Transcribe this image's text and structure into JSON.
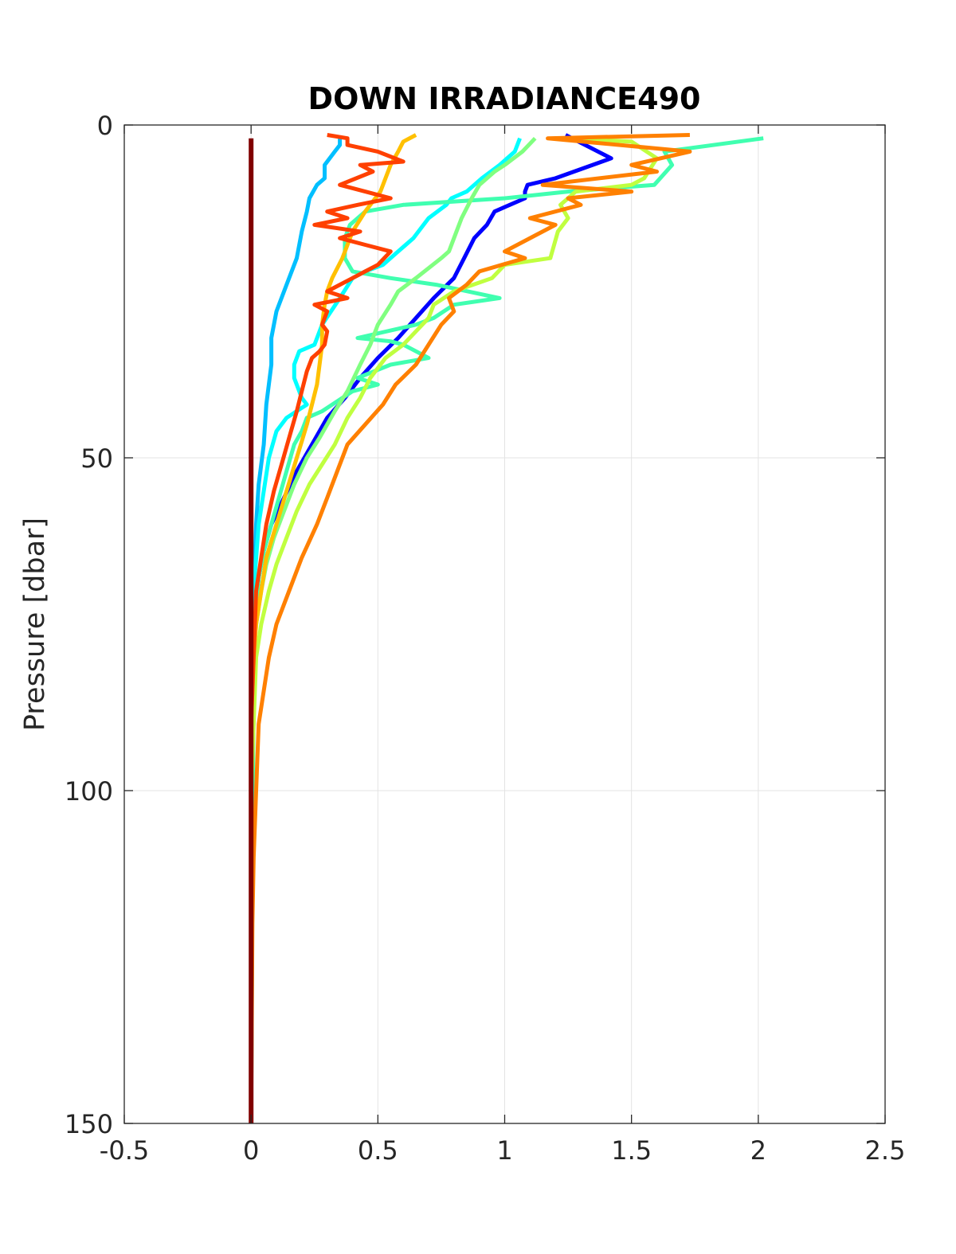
{
  "chart_data": {
    "type": "line",
    "title": "DOWN IRRADIANCE490",
    "xlabel": "",
    "ylabel": "Pressure [dbar]",
    "xlim": [
      -0.5,
      2.5
    ],
    "ylim": [
      0,
      150
    ],
    "y_reversed": true,
    "grid": true,
    "legend": "none",
    "x_ticks": [
      "-0.5",
      "0",
      "0.5",
      "1",
      "1.5",
      "2",
      "2.5"
    ],
    "y_ticks": [
      "0",
      "50",
      "100",
      "150"
    ],
    "series": [
      {
        "color": "#0000ff",
        "points": [
          [
            1.24,
            1.5
          ],
          [
            1.42,
            5
          ],
          [
            1.2,
            8
          ],
          [
            1.09,
            9
          ],
          [
            1.08,
            10
          ],
          [
            1.08,
            11
          ],
          [
            1.02,
            12
          ],
          [
            0.96,
            13
          ],
          [
            0.93,
            15
          ],
          [
            0.88,
            17
          ],
          [
            0.84,
            20
          ],
          [
            0.8,
            23
          ],
          [
            0.72,
            26
          ],
          [
            0.65,
            29
          ],
          [
            0.58,
            32
          ],
          [
            0.5,
            35
          ],
          [
            0.43,
            38
          ],
          [
            0.37,
            41
          ],
          [
            0.3,
            44
          ],
          [
            0.24,
            48
          ],
          [
            0.18,
            52
          ],
          [
            0.13,
            56
          ],
          [
            0.08,
            60
          ],
          [
            0.05,
            64
          ],
          [
            0.03,
            68
          ],
          [
            0.02,
            72
          ],
          [
            0.01,
            80
          ],
          [
            0.005,
            100
          ],
          [
            0,
            150
          ]
        ]
      },
      {
        "color": "#00bfff",
        "points": [
          [
            0.35,
            2
          ],
          [
            0.35,
            3
          ],
          [
            0.33,
            4
          ],
          [
            0.29,
            6
          ],
          [
            0.29,
            8
          ],
          [
            0.26,
            9
          ],
          [
            0.23,
            11
          ],
          [
            0.22,
            13
          ],
          [
            0.2,
            16
          ],
          [
            0.18,
            20
          ],
          [
            0.14,
            24
          ],
          [
            0.1,
            28
          ],
          [
            0.08,
            32
          ],
          [
            0.08,
            36
          ],
          [
            0.06,
            42
          ],
          [
            0.05,
            48
          ],
          [
            0.03,
            54
          ],
          [
            0.02,
            60
          ],
          [
            0.01,
            70
          ],
          [
            0,
            80
          ],
          [
            0,
            150
          ]
        ]
      },
      {
        "color": "#00ffff",
        "points": [
          [
            1.06,
            2
          ],
          [
            1.04,
            4
          ],
          [
            0.98,
            6
          ],
          [
            0.91,
            8
          ],
          [
            0.85,
            10
          ],
          [
            0.79,
            11
          ],
          [
            0.77,
            12
          ],
          [
            0.7,
            14
          ],
          [
            0.64,
            17
          ],
          [
            0.58,
            19
          ],
          [
            0.52,
            21
          ],
          [
            0.45,
            22
          ],
          [
            0.4,
            23
          ],
          [
            0.35,
            26
          ],
          [
            0.28,
            30
          ],
          [
            0.25,
            33
          ],
          [
            0.19,
            34
          ],
          [
            0.17,
            36
          ],
          [
            0.17,
            38
          ],
          [
            0.2,
            41
          ],
          [
            0.22,
            42
          ],
          [
            0.14,
            44
          ],
          [
            0.1,
            46
          ],
          [
            0.07,
            50
          ],
          [
            0.05,
            55
          ],
          [
            0.03,
            60
          ],
          [
            0.01,
            70
          ],
          [
            0,
            80
          ],
          [
            0,
            150
          ]
        ]
      },
      {
        "color": "#40ffb0",
        "points": [
          [
            2.02,
            2
          ],
          [
            1.63,
            4
          ],
          [
            1.66,
            6
          ],
          [
            1.59,
            9
          ],
          [
            1.25,
            10
          ],
          [
            1.0,
            11
          ],
          [
            0.6,
            12
          ],
          [
            0.45,
            13
          ],
          [
            0.39,
            15
          ],
          [
            0.37,
            17
          ],
          [
            0.37,
            20
          ],
          [
            0.4,
            22
          ],
          [
            0.55,
            23
          ],
          [
            0.73,
            24
          ],
          [
            0.98,
            26
          ],
          [
            0.8,
            27
          ],
          [
            0.72,
            29
          ],
          [
            0.65,
            30
          ],
          [
            0.42,
            32
          ],
          [
            0.55,
            32.5
          ],
          [
            0.6,
            33
          ],
          [
            0.65,
            34
          ],
          [
            0.7,
            35
          ],
          [
            0.55,
            36
          ],
          [
            0.42,
            38
          ],
          [
            0.5,
            39
          ],
          [
            0.4,
            40
          ],
          [
            0.28,
            43
          ],
          [
            0.22,
            44
          ],
          [
            0.2,
            46
          ],
          [
            0.17,
            48
          ],
          [
            0.14,
            52
          ],
          [
            0.11,
            56
          ],
          [
            0.08,
            60
          ],
          [
            0.05,
            64
          ],
          [
            0.03,
            68
          ],
          [
            0.02,
            72
          ],
          [
            0.01,
            80
          ],
          [
            0,
            150
          ]
        ]
      },
      {
        "color": "#80ff80",
        "points": [
          [
            1.12,
            2
          ],
          [
            1.07,
            4
          ],
          [
            1.0,
            6
          ],
          [
            0.96,
            7
          ],
          [
            0.9,
            9
          ],
          [
            0.87,
            11
          ],
          [
            0.83,
            14
          ],
          [
            0.81,
            16
          ],
          [
            0.78,
            19
          ],
          [
            0.75,
            20
          ],
          [
            0.65,
            23
          ],
          [
            0.58,
            25
          ],
          [
            0.55,
            27
          ],
          [
            0.5,
            30
          ],
          [
            0.47,
            33
          ],
          [
            0.43,
            36
          ],
          [
            0.38,
            40
          ],
          [
            0.33,
            43
          ],
          [
            0.27,
            47
          ],
          [
            0.22,
            50
          ],
          [
            0.17,
            54
          ],
          [
            0.13,
            58
          ],
          [
            0.09,
            62
          ],
          [
            0.06,
            66
          ],
          [
            0.04,
            70
          ],
          [
            0.02,
            75
          ],
          [
            0.01,
            80
          ],
          [
            0,
            90
          ],
          [
            0,
            150
          ]
        ]
      },
      {
        "color": "#c0ff40",
        "points": [
          [
            1.23,
            2
          ],
          [
            1.5,
            2.5
          ],
          [
            1.6,
            5
          ],
          [
            1.55,
            8
          ],
          [
            1.5,
            9
          ],
          [
            1.28,
            10
          ],
          [
            1.22,
            12
          ],
          [
            1.25,
            14
          ],
          [
            1.21,
            16
          ],
          [
            1.18,
            20
          ],
          [
            1.0,
            21
          ],
          [
            0.95,
            23
          ],
          [
            0.8,
            25
          ],
          [
            0.72,
            27
          ],
          [
            0.7,
            29
          ],
          [
            0.65,
            31
          ],
          [
            0.6,
            33
          ],
          [
            0.53,
            35
          ],
          [
            0.47,
            38
          ],
          [
            0.43,
            41
          ],
          [
            0.38,
            44
          ],
          [
            0.33,
            48
          ],
          [
            0.28,
            51
          ],
          [
            0.23,
            54
          ],
          [
            0.18,
            58
          ],
          [
            0.14,
            62
          ],
          [
            0.1,
            66
          ],
          [
            0.07,
            70
          ],
          [
            0.04,
            75
          ],
          [
            0.02,
            80
          ],
          [
            0.01,
            90
          ],
          [
            0,
            100
          ],
          [
            0,
            150
          ]
        ]
      },
      {
        "color": "#ffc000",
        "points": [
          [
            0.65,
            1.5
          ],
          [
            0.6,
            2.5
          ],
          [
            0.58,
            4
          ],
          [
            0.55,
            6
          ],
          [
            0.53,
            8
          ],
          [
            0.51,
            10
          ],
          [
            0.45,
            13
          ],
          [
            0.4,
            16
          ],
          [
            0.36,
            20
          ],
          [
            0.32,
            23
          ],
          [
            0.3,
            25
          ],
          [
            0.29,
            27
          ],
          [
            0.28,
            30
          ],
          [
            0.28,
            33
          ],
          [
            0.27,
            36
          ],
          [
            0.26,
            39
          ],
          [
            0.24,
            42
          ],
          [
            0.22,
            45
          ],
          [
            0.18,
            50
          ],
          [
            0.14,
            55
          ],
          [
            0.1,
            60
          ],
          [
            0.06,
            65
          ],
          [
            0.04,
            70
          ],
          [
            0.02,
            75
          ],
          [
            0.01,
            80
          ],
          [
            0,
            90
          ],
          [
            0,
            150
          ]
        ]
      },
      {
        "color": "#ff8000",
        "points": [
          [
            1.73,
            1.5
          ],
          [
            1.17,
            2
          ],
          [
            1.73,
            4
          ],
          [
            1.5,
            6
          ],
          [
            1.6,
            7
          ],
          [
            1.15,
            9
          ],
          [
            1.5,
            10
          ],
          [
            1.25,
            11
          ],
          [
            1.3,
            12
          ],
          [
            1.1,
            14
          ],
          [
            1.2,
            15
          ],
          [
            1.1,
            17
          ],
          [
            1.0,
            19
          ],
          [
            1.08,
            20
          ],
          [
            0.9,
            22
          ],
          [
            0.85,
            24
          ],
          [
            0.78,
            26
          ],
          [
            0.8,
            28
          ],
          [
            0.75,
            30
          ],
          [
            0.7,
            33
          ],
          [
            0.65,
            36
          ],
          [
            0.57,
            39
          ],
          [
            0.52,
            42
          ],
          [
            0.45,
            45
          ],
          [
            0.38,
            48
          ],
          [
            0.34,
            52
          ],
          [
            0.3,
            56
          ],
          [
            0.26,
            60
          ],
          [
            0.2,
            65
          ],
          [
            0.15,
            70
          ],
          [
            0.1,
            75
          ],
          [
            0.07,
            80
          ],
          [
            0.05,
            85
          ],
          [
            0.03,
            90
          ],
          [
            0.02,
            100
          ],
          [
            0.01,
            110
          ],
          [
            0.005,
            120
          ],
          [
            0,
            150
          ]
        ]
      },
      {
        "color": "#ff4000",
        "points": [
          [
            0.3,
            1.5
          ],
          [
            0.38,
            2
          ],
          [
            0.38,
            3
          ],
          [
            0.5,
            4
          ],
          [
            0.6,
            5.5
          ],
          [
            0.43,
            6
          ],
          [
            0.48,
            7
          ],
          [
            0.35,
            9
          ],
          [
            0.45,
            10
          ],
          [
            0.55,
            11
          ],
          [
            0.42,
            12
          ],
          [
            0.3,
            13
          ],
          [
            0.38,
            14
          ],
          [
            0.25,
            15
          ],
          [
            0.43,
            16
          ],
          [
            0.35,
            17
          ],
          [
            0.45,
            18
          ],
          [
            0.55,
            19
          ],
          [
            0.5,
            21
          ],
          [
            0.45,
            22
          ],
          [
            0.4,
            23
          ],
          [
            0.35,
            24
          ],
          [
            0.3,
            25
          ],
          [
            0.38,
            26
          ],
          [
            0.25,
            27
          ],
          [
            0.3,
            28
          ],
          [
            0.28,
            30
          ],
          [
            0.3,
            31
          ],
          [
            0.29,
            33
          ],
          [
            0.27,
            34
          ],
          [
            0.24,
            35
          ],
          [
            0.22,
            37
          ],
          [
            0.2,
            40
          ],
          [
            0.18,
            43
          ],
          [
            0.15,
            47
          ],
          [
            0.12,
            51
          ],
          [
            0.09,
            55
          ],
          [
            0.06,
            60
          ],
          [
            0.04,
            65
          ],
          [
            0.02,
            70
          ],
          [
            0.01,
            80
          ],
          [
            0,
            90
          ],
          [
            0,
            150
          ]
        ]
      },
      {
        "color": "#800000",
        "points": [
          [
            0,
            2
          ],
          [
            0,
            150
          ]
        ]
      }
    ]
  }
}
